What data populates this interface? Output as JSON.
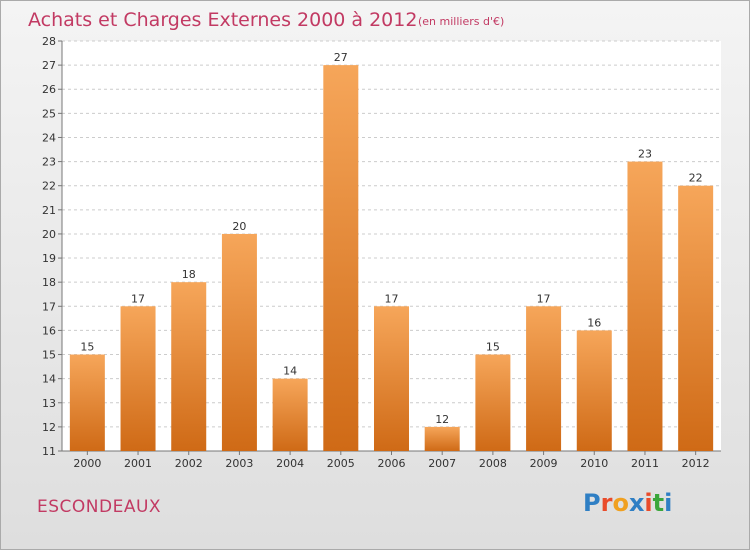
{
  "header": {
    "title": "Achats et Charges Externes 2000 à 2012",
    "subtitle": "(en milliers d'€)"
  },
  "footer": {
    "commune": "ESCONDEAUX",
    "logo_text": "Proxiti",
    "logo_colors": [
      "#2f7fc4",
      "#e94b2a",
      "#f0a020",
      "#2f7fc4",
      "#e94b2a",
      "#3aa63a",
      "#2f7fc4"
    ]
  },
  "colors": {
    "bar_top": "#f6a65a",
    "bar_bottom": "#cf6a16",
    "grid": "#cccccc",
    "axis": "#777777",
    "plot_bg": "#ffffff",
    "title": "#c23a63"
  },
  "chart_data": {
    "type": "bar",
    "title": "Achats et Charges Externes 2000 à 2012",
    "subtitle": "(en milliers d'€)",
    "xlabel": "",
    "ylabel": "",
    "categories": [
      "2000",
      "2001",
      "2002",
      "2003",
      "2004",
      "2005",
      "2006",
      "2007",
      "2008",
      "2009",
      "2010",
      "2011",
      "2012"
    ],
    "values": [
      15,
      17,
      18,
      20,
      14,
      27,
      17,
      12,
      15,
      17,
      16,
      23,
      22
    ],
    "ylim": [
      11,
      28
    ],
    "yticks": [
      11,
      12,
      13,
      14,
      15,
      16,
      17,
      18,
      19,
      20,
      21,
      22,
      23,
      24,
      25,
      26,
      27,
      28
    ],
    "grid": true,
    "legend": "none"
  }
}
